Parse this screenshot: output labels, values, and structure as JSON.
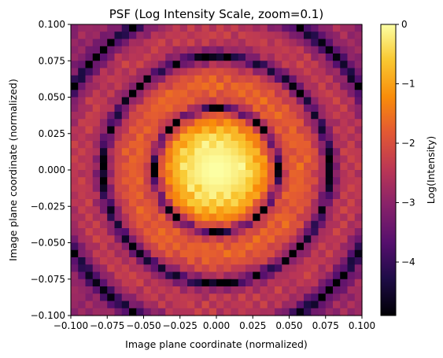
{
  "chart_data": {
    "type": "heatmap",
    "title": "PSF (Log Intensity Scale, zoom=0.1)",
    "xlabel": "Image plane coordinate (normalized)",
    "ylabel": "Image plane coordinate (normalized)",
    "xlim": [
      -0.1,
      0.1
    ],
    "ylim": [
      -0.1,
      0.1
    ],
    "x_ticks": [
      "−0.100",
      "−0.075",
      "−0.050",
      "−0.025",
      "0.000",
      "0.025",
      "0.050",
      "0.075",
      "0.100"
    ],
    "y_ticks": [
      "−0.100",
      "−0.075",
      "−0.050",
      "−0.025",
      "0.000",
      "0.025",
      "0.050",
      "0.075",
      "0.100"
    ],
    "grid_size": 40,
    "colormap": "inferno",
    "colorbar": {
      "label": "Log(Intensity)",
      "range": [
        -4.9,
        0
      ],
      "ticks": [
        "0",
        "−1",
        "−2",
        "−3",
        "−4"
      ]
    },
    "peak": {
      "x": 0.0,
      "y": 0.0,
      "log_intensity": 0
    },
    "grid": false
  }
}
